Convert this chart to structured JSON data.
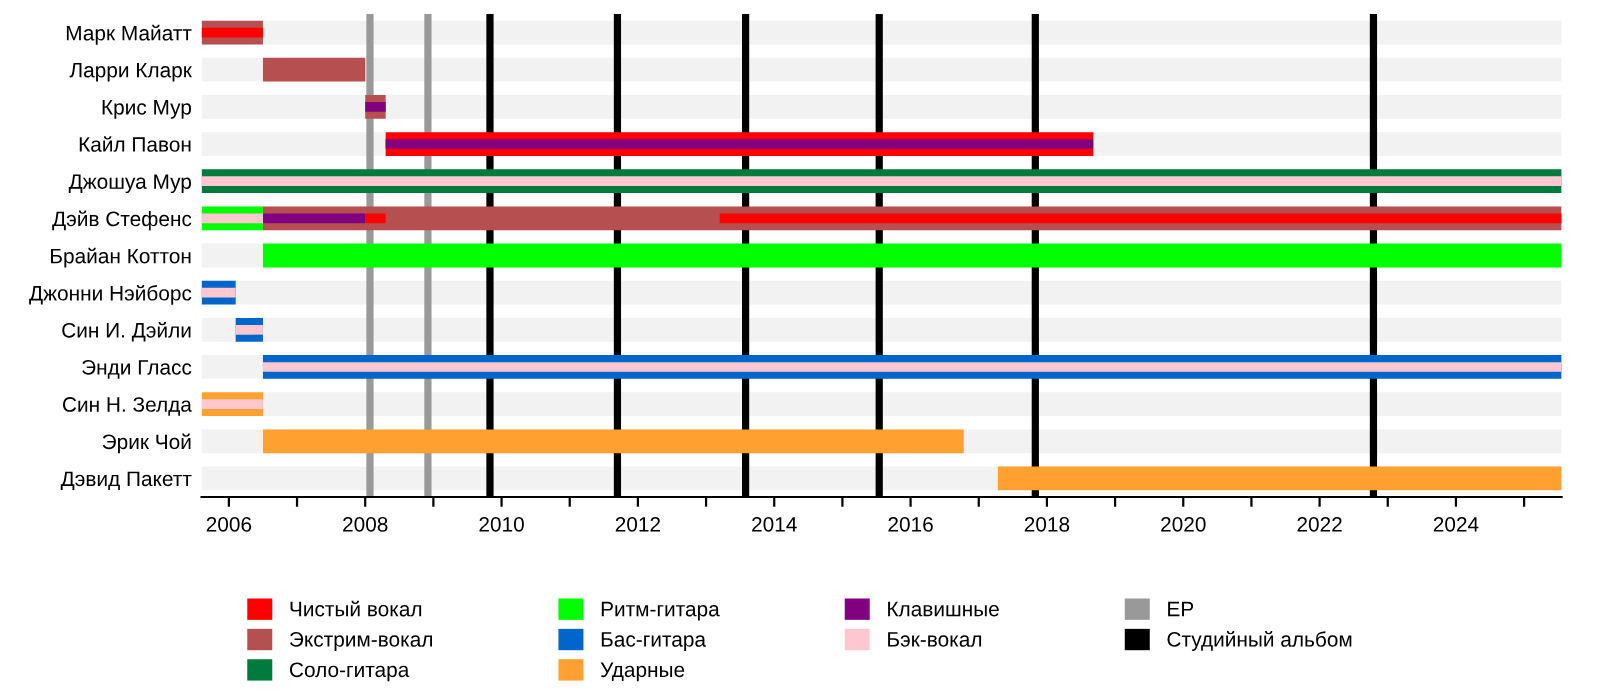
{
  "chart_data": {
    "type": "bar",
    "orientation": "horizontal",
    "categories": [
      "Марк Майатт",
      "Ларри Кларк",
      "Крис Мур",
      "Кайл Павон",
      "Джошуа Мур",
      "Дэйв Стефенс",
      "Брайан Коттон",
      "Джонни Нэйборс",
      "Син И. Дэйли",
      "Энди Гласс",
      "Син Н. Зелда",
      "Эрик Чой",
      "Дэвид Пакетт"
    ],
    "series": [
      {
        "name": "Чистый вокал",
        "color": "#ff0000",
        "base": [
          null,
          null,
          null,
          2008.3,
          null,
          null,
          null,
          null,
          null,
          null,
          null,
          null,
          null
        ],
        "values": [
          null,
          null,
          null,
          10.38,
          null,
          null,
          null,
          null,
          null,
          null,
          null,
          null,
          null
        ]
      },
      {
        "name": "Экстрим-вокал",
        "color": "#b65050",
        "base": [
          2005.6,
          2006.5,
          2008.0,
          null,
          null,
          2006.5,
          null,
          null,
          null,
          null,
          null,
          null,
          null
        ],
        "values": [
          0.9,
          1.5,
          0.3,
          null,
          null,
          19.05,
          null,
          null,
          null,
          null,
          null,
          null,
          null
        ]
      },
      {
        "name": "Соло-гитара",
        "color": "#007a3d",
        "base": [
          null,
          null,
          null,
          null,
          2005.6,
          null,
          null,
          null,
          null,
          null,
          null,
          null,
          null
        ],
        "values": [
          null,
          null,
          null,
          null,
          19.95,
          null,
          null,
          null,
          null,
          null,
          null,
          null,
          null
        ]
      },
      {
        "name": "Ритм-гитара",
        "color": "#00ff00",
        "base": [
          null,
          null,
          null,
          null,
          null,
          2005.6,
          2006.5,
          null,
          null,
          null,
          null,
          null,
          null
        ],
        "values": [
          null,
          null,
          null,
          null,
          null,
          0.9,
          19.05,
          null,
          null,
          null,
          null,
          null,
          null
        ]
      },
      {
        "name": "Бас-гитара",
        "color": "#0066cc",
        "base": [
          null,
          null,
          null,
          null,
          null,
          null,
          null,
          2005.6,
          2006.1,
          2006.5,
          null,
          null,
          null
        ],
        "values": [
          null,
          null,
          null,
          null,
          null,
          null,
          null,
          0.5,
          0.4,
          19.05,
          null,
          null,
          null
        ]
      },
      {
        "name": "Ударные",
        "color": "#ffa030",
        "base": [
          null,
          null,
          null,
          null,
          null,
          null,
          null,
          null,
          null,
          null,
          2005.6,
          2006.5,
          2017.28
        ],
        "values": [
          null,
          null,
          null,
          null,
          null,
          null,
          null,
          null,
          null,
          null,
          0.9,
          10.28,
          8.27
        ]
      },
      {
        "name": "Клавишные",
        "color": "#800080",
        "base": [
          null,
          null,
          2008.0,
          2008.3,
          null,
          2006.5,
          null,
          null,
          null,
          null,
          null,
          null,
          null
        ],
        "values": [
          null,
          null,
          0.3,
          10.38,
          null,
          1.5,
          null,
          null,
          null,
          null,
          null,
          null,
          null
        ]
      },
      {
        "name": "Бэк-вокал",
        "color": "#ffc8d0",
        "base": [
          null,
          null,
          null,
          null,
          2005.6,
          2005.6,
          null,
          2005.6,
          2006.1,
          2006.5,
          2005.6,
          null,
          null
        ],
        "values": [
          null,
          null,
          null,
          null,
          19.95,
          0.9,
          null,
          0.5,
          0.4,
          19.05,
          0.9,
          null,
          null
        ]
      },
      {
        "color": "#ff0000",
        "base": [
          2005.6,
          null,
          null,
          null,
          null,
          2008.0,
          null,
          null,
          null,
          null,
          null,
          null,
          null
        ],
        "values": [
          0.9,
          null,
          null,
          null,
          null,
          0.3,
          null,
          null,
          null,
          null,
          null,
          null,
          null
        ]
      },
      {
        "color": "#ff0000",
        "base": [
          null,
          null,
          null,
          null,
          null,
          2013.2,
          null,
          null,
          null,
          null,
          null,
          null,
          null
        ],
        "values": [
          null,
          null,
          null,
          null,
          null,
          12.35,
          null,
          null,
          null,
          null,
          null,
          null,
          null
        ]
      }
    ],
    "xlim": [
      2005.6,
      2025.55
    ],
    "xticks": [
      2006,
      {
        "value": 2007,
        "label": null
      },
      2008,
      {
        "value": 2009,
        "label": null
      },
      2010,
      {
        "value": 2011,
        "label": null
      },
      2012,
      {
        "value": 2013,
        "label": null
      },
      2014,
      {
        "value": 2015,
        "label": null
      },
      2016,
      {
        "value": 2017,
        "label": null
      },
      2018,
      {
        "value": 2019,
        "label": null
      },
      2020,
      {
        "value": 2021,
        "label": null
      },
      2022,
      {
        "value": 2023,
        "label": null
      },
      2024,
      {
        "value": 2025,
        "label": null
      }
    ],
    "ref_lines": [
      {
        "axis": "x",
        "value": 2008.07,
        "color": "#999999"
      },
      {
        "axis": "x",
        "value": 2008.92,
        "color": "#999999",
        "label": "EP"
      },
      {
        "axis": "x",
        "value": 2009.83,
        "color": "#000000",
        "label": "Студийный альбом"
      },
      {
        "axis": "x",
        "value": 2011.7,
        "color": "#000000"
      },
      {
        "axis": "x",
        "value": 2013.58,
        "color": "#000000"
      },
      {
        "axis": "x",
        "value": 2015.54,
        "color": "#000000"
      },
      {
        "axis": "x",
        "value": 2017.83,
        "color": "#000000"
      },
      {
        "axis": "x",
        "value": 2022.79,
        "color": "#000000"
      }
    ],
    "legend": "bottom",
    "grid": false
  }
}
